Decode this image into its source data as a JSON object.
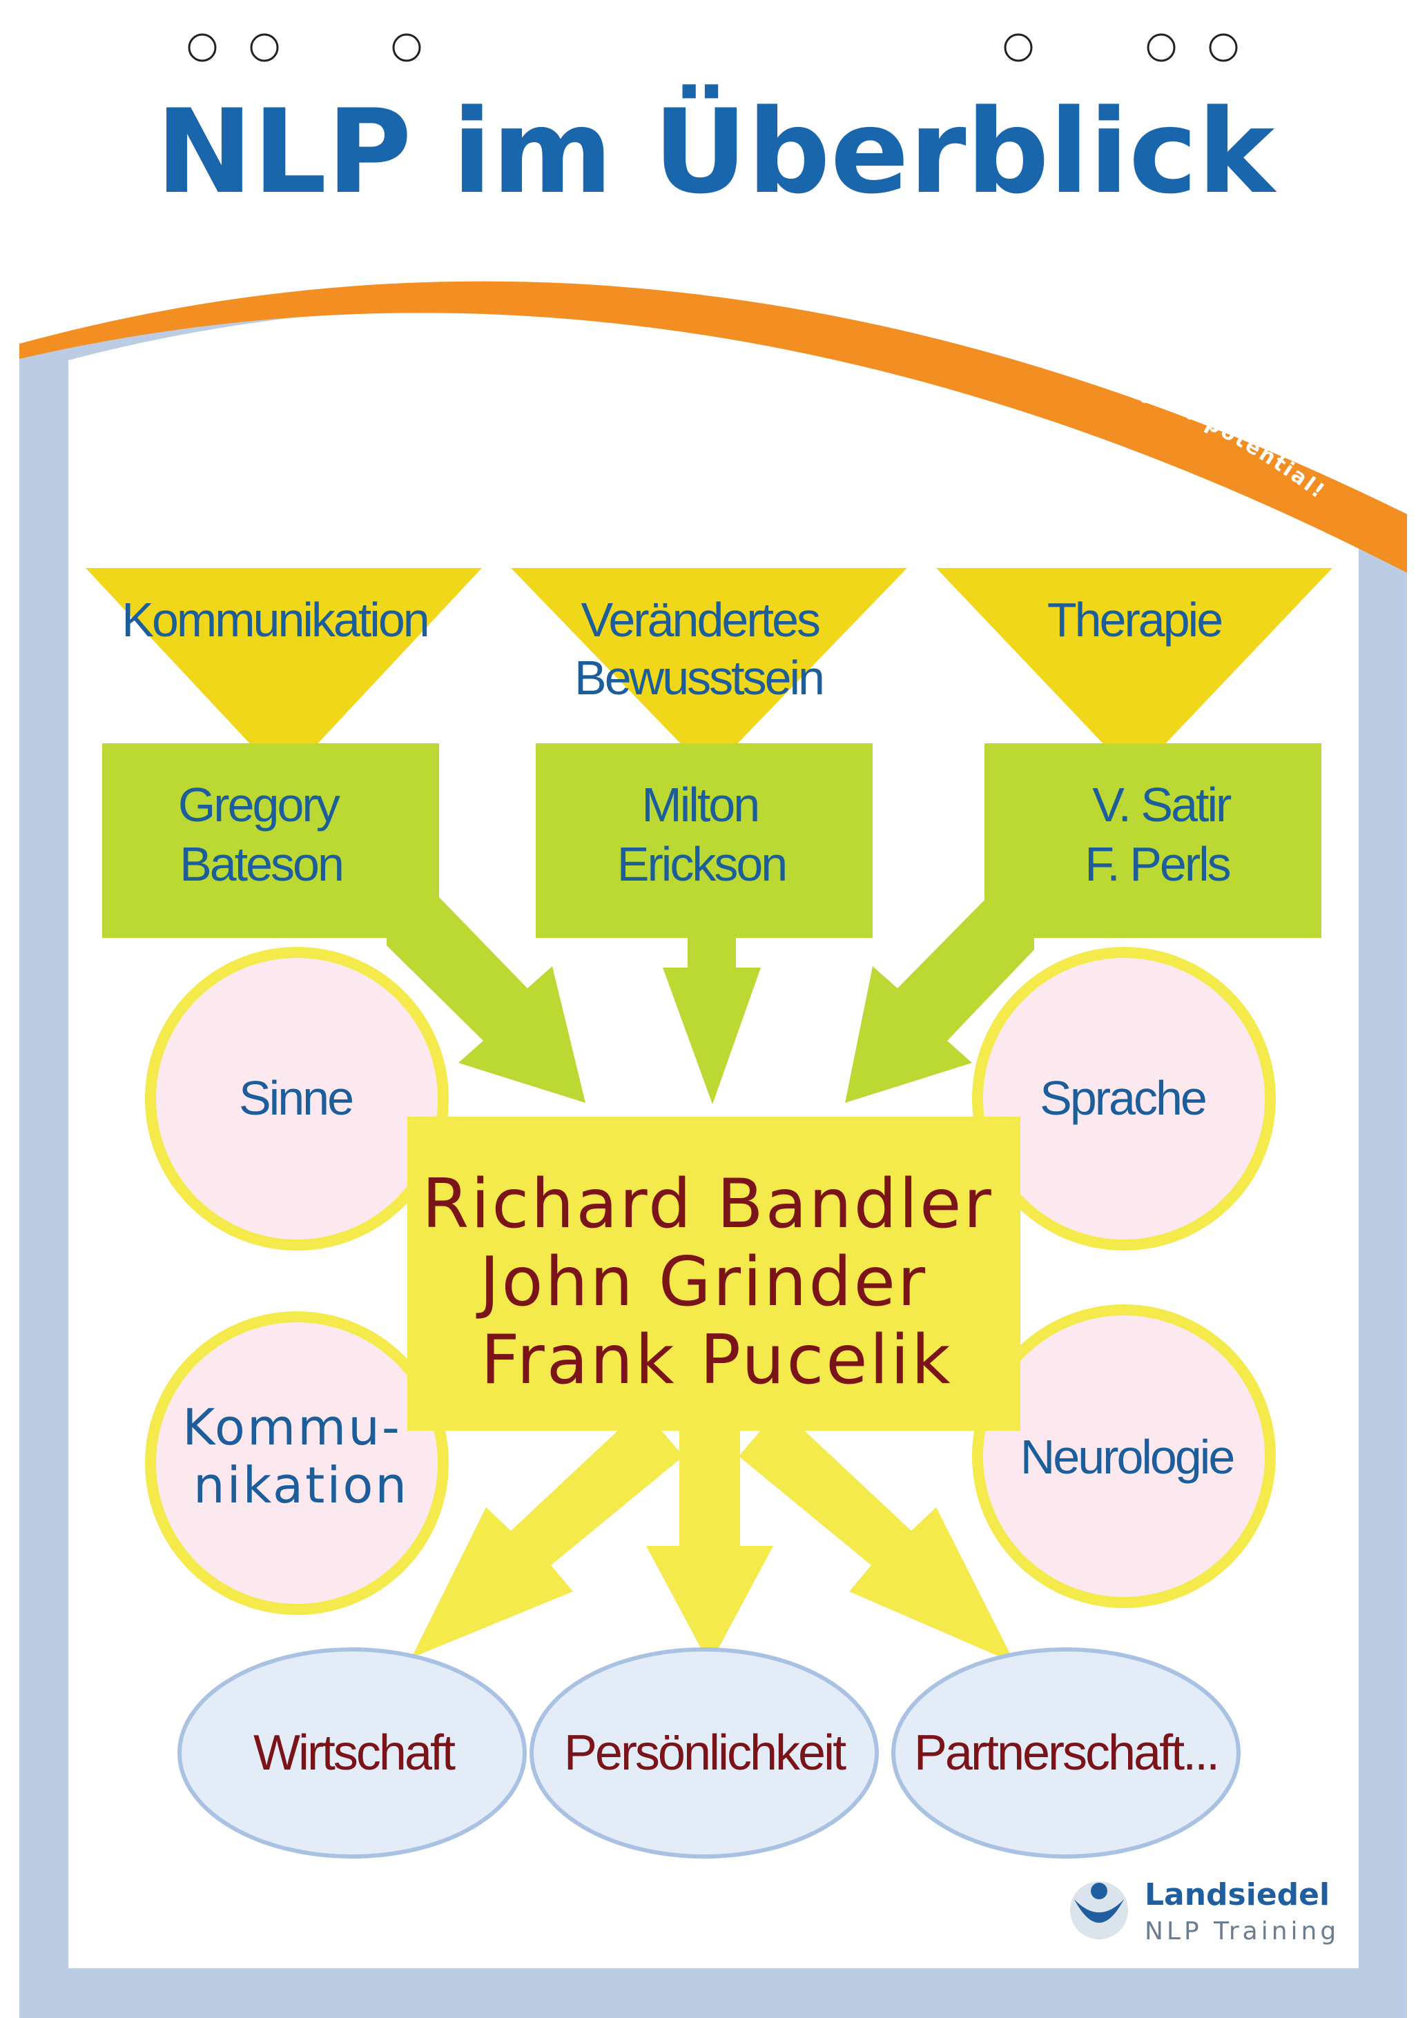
{
  "title": "NLP im Überblick",
  "slogan": "... empower your potential!",
  "influences": [
    {
      "field": [
        "Kommunikation"
      ],
      "person": [
        "Gregory",
        "Bateson"
      ]
    },
    {
      "field": [
        "Verändertes",
        "Bewusstsein"
      ],
      "person": [
        "Milton",
        "Erickson"
      ]
    },
    {
      "field": [
        "Therapie"
      ],
      "person": [
        "V. Satir",
        "F. Perls"
      ]
    }
  ],
  "founders": [
    "Richard Bandler",
    "John Grinder",
    "Frank Pucelik"
  ],
  "aspects": {
    "left_top": [
      "Sinne"
    ],
    "left_bottom": [
      "Kommu-",
      "nikation"
    ],
    "right_top": [
      "Sprache"
    ],
    "right_bottom": [
      "Neurologie"
    ]
  },
  "applications": [
    "Wirtschaft",
    "Persönlichkeit",
    "Partnerschaft..."
  ],
  "logo": {
    "name": "Landsiedel",
    "subtitle": "NLP Training"
  },
  "colors": {
    "title_blue": "#1a66ad",
    "orange": "#f28e22",
    "frame_blue": "#bccde3",
    "yellow": "#f5ea4b",
    "triangle_yellow": "#f1d719",
    "green": "#bcd832",
    "founders_red": "#7b1418",
    "circle_pink": "#fbe9ef",
    "oval_blue": "#e4ecf8"
  }
}
